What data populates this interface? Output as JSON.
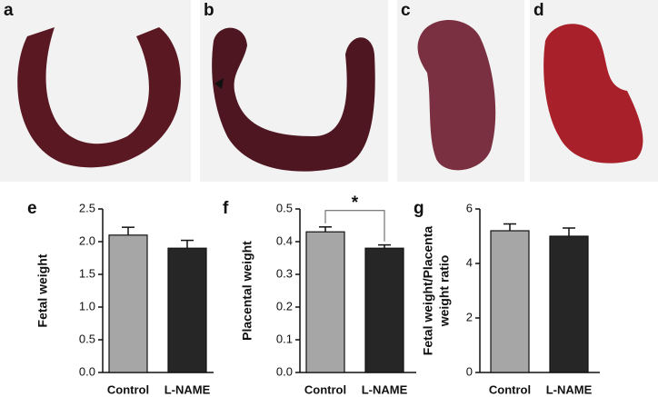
{
  "photos": [
    "a",
    "b",
    "c",
    "d"
  ],
  "chart_data": [
    {
      "type": "bar",
      "panel": "e",
      "ylabel": [
        "Fetal weight"
      ],
      "categories": [
        "Control",
        "L-NAME"
      ],
      "values": [
        2.1,
        1.9
      ],
      "errors": [
        0.12,
        0.12
      ],
      "colors": [
        "#a6a6a6",
        "#262626"
      ],
      "ylim": [
        0,
        2.5
      ],
      "yticks": [
        {
          "value": 0,
          "label": "0.0"
        },
        0.5,
        {
          "value": 1,
          "label": "1.0"
        },
        1.5,
        {
          "value": 2,
          "label": "2.0"
        },
        2.5
      ]
    },
    {
      "type": "bar",
      "panel": "f",
      "ylabel": [
        "Placental weight"
      ],
      "categories": [
        "Control",
        "L-NAME"
      ],
      "values": [
        0.43,
        0.38
      ],
      "errors": [
        0.015,
        0.01
      ],
      "colors": [
        "#a6a6a6",
        "#262626"
      ],
      "ylim": [
        0,
        0.5
      ],
      "yticks": [
        {
          "value": 0,
          "label": "0.0"
        },
        0.1,
        0.2,
        0.3,
        0.4,
        0.5
      ],
      "significance": "*"
    },
    {
      "type": "bar",
      "panel": "g",
      "ylabel": [
        "Fetal weight/Placenta",
        "weight ratio"
      ],
      "categories": [
        "Control",
        "L-NAME"
      ],
      "values": [
        5.2,
        5.0
      ],
      "errors": [
        0.25,
        0.3
      ],
      "colors": [
        "#a6a6a6",
        "#262626"
      ],
      "ylim": [
        0,
        6
      ],
      "yticks": [
        0,
        2,
        4,
        6
      ]
    }
  ]
}
